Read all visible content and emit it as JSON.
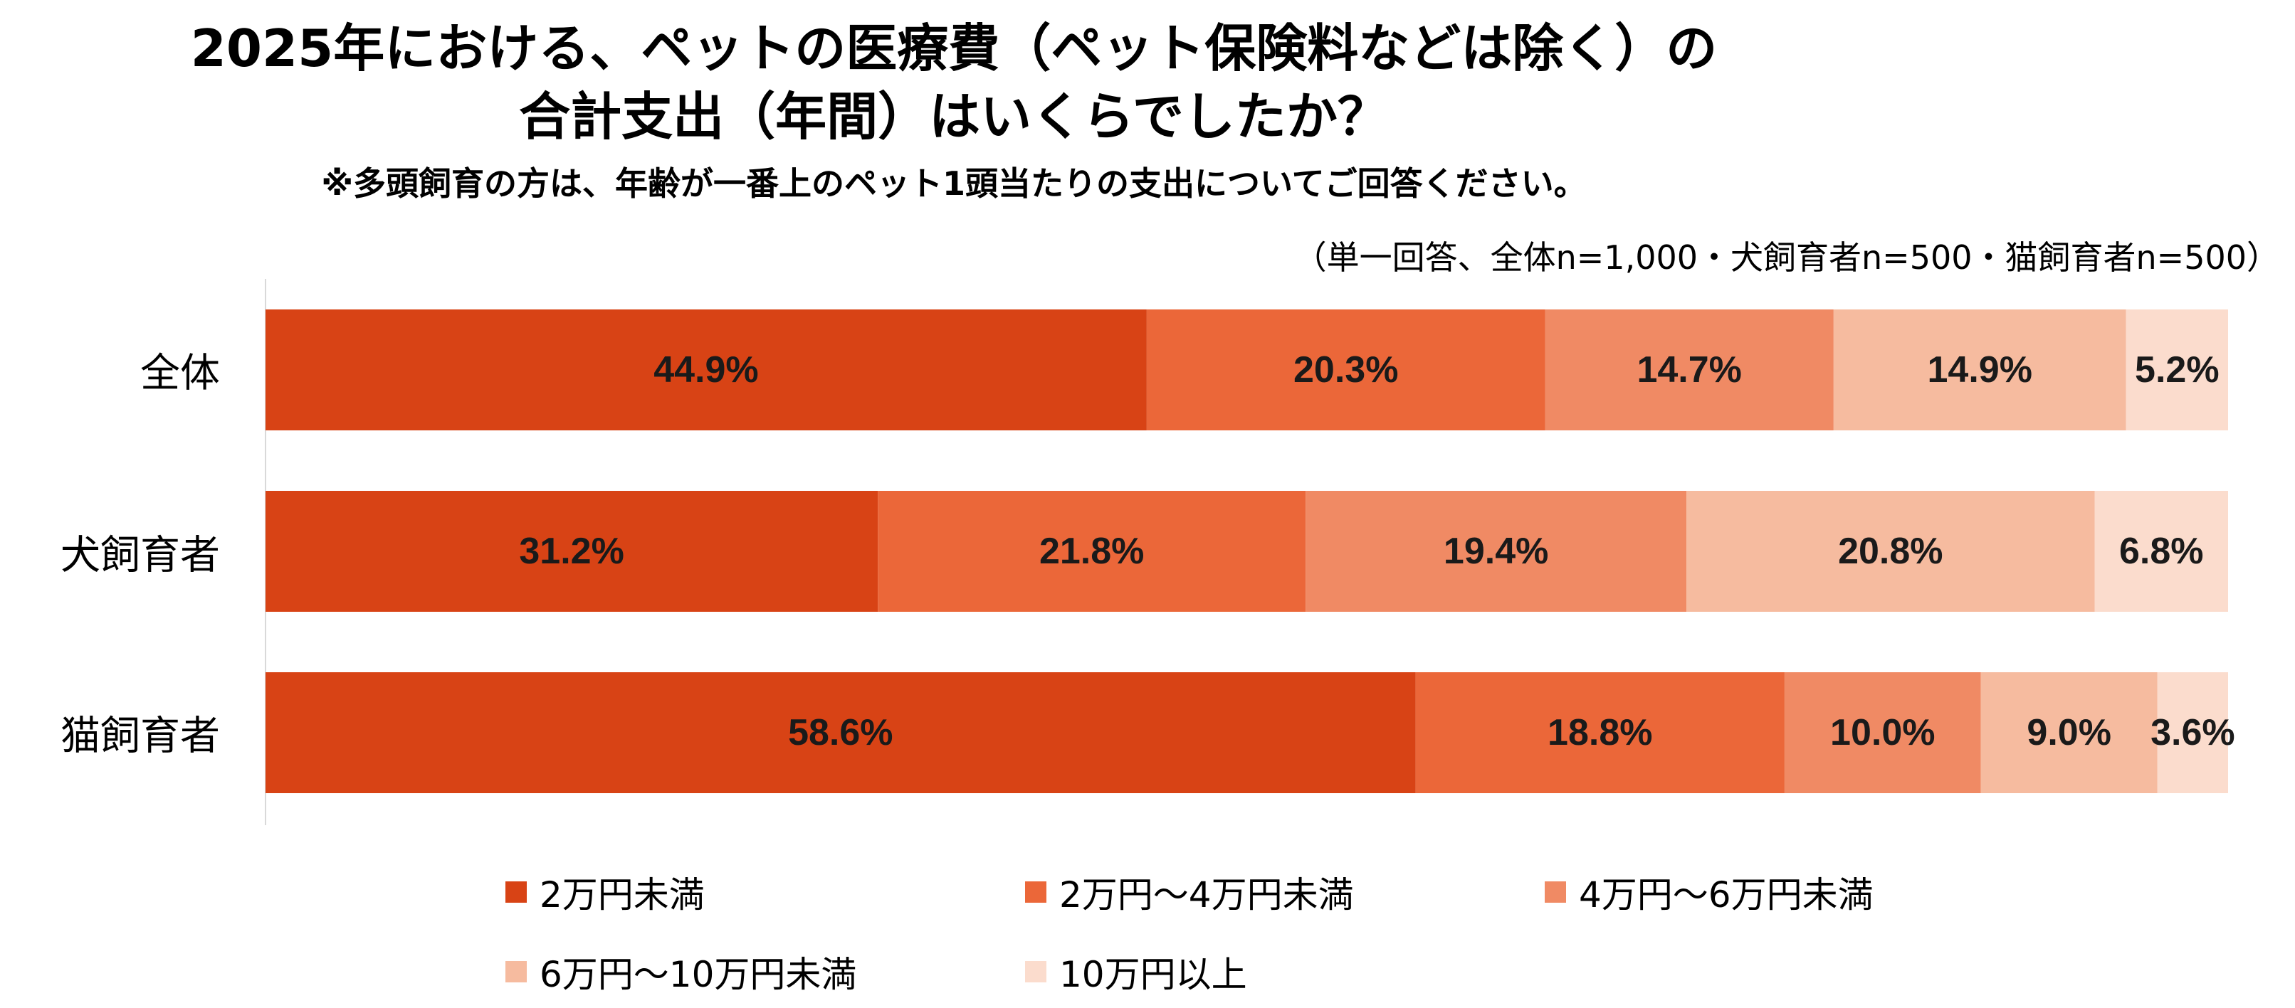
{
  "title_line1": "2025年における、ペットの医療費（ペット保険料などは除く）の",
  "title_line2": "合計支出（年間）はいくらでしたか？",
  "note": "※多頭飼育の方は、年齢が一番上のペット1頭当たりの支出についてご回答ください。",
  "sample": "（単一回答、全体n=1,000・犬飼育者n=500・猫飼育者n=500）",
  "chart_data": {
    "type": "bar",
    "orientation": "horizontal",
    "stacked": true,
    "percent_stacked": true,
    "categories": [
      "全体",
      "犬飼育者",
      "猫飼育者"
    ],
    "series": [
      {
        "name": "2万円未満",
        "color": "#d84315",
        "values": [
          44.9,
          31.2,
          58.6
        ],
        "labels": [
          "44.9%",
          "31.2%",
          "58.6%"
        ]
      },
      {
        "name": "2万円～4万円未満",
        "color": "#eb6739",
        "values": [
          20.3,
          21.8,
          18.8
        ],
        "labels": [
          "20.3%",
          "21.8%",
          "18.8%"
        ]
      },
      {
        "name": "4万円～6万円未満",
        "color": "#f08a64",
        "values": [
          14.7,
          19.4,
          10.0
        ],
        "labels": [
          "14.7%",
          "19.4%",
          "10.0%"
        ]
      },
      {
        "name": "6万円～10万円未満",
        "color": "#f6bb9f",
        "values": [
          14.9,
          20.8,
          9.0
        ],
        "labels": [
          "14.9%",
          "20.8%",
          "9.0%"
        ]
      },
      {
        "name": "10万円以上",
        "color": "#fbdccd",
        "values": [
          5.2,
          6.8,
          3.6
        ],
        "labels": [
          "5.2%",
          "6.8%",
          "3.6%"
        ]
      }
    ],
    "xlim": [
      0,
      100
    ],
    "legend_position": "bottom",
    "grid": false
  }
}
